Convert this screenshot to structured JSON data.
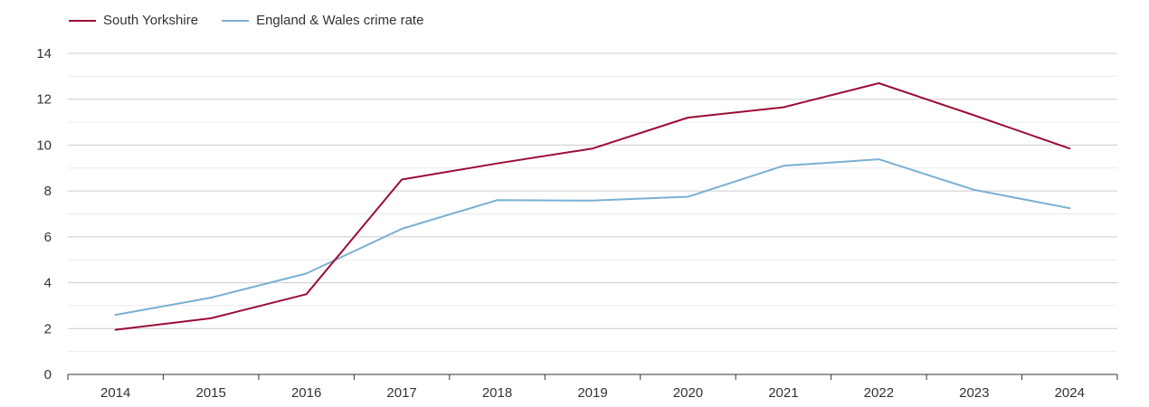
{
  "chart_data": {
    "type": "line",
    "title": "",
    "xlabel": "",
    "ylabel": "",
    "categories": [
      "2014",
      "2015",
      "2016",
      "2017",
      "2018",
      "2019",
      "2020",
      "2021",
      "2022",
      "2023",
      "2024"
    ],
    "ylim": [
      0,
      14
    ],
    "yticks": [
      0,
      2,
      4,
      6,
      8,
      10,
      12,
      14
    ],
    "grid": true,
    "legend_position": "top-left",
    "series": [
      {
        "name": "South Yorkshire",
        "color": "#9b0d33",
        "values": [
          1.95,
          2.45,
          3.5,
          8.5,
          9.2,
          9.85,
          11.2,
          11.65,
          12.7,
          11.3,
          9.85
        ]
      },
      {
        "name": "England & Wales crime rate",
        "color": "#7ab0d2",
        "values": [
          2.6,
          3.35,
          4.4,
          6.35,
          7.6,
          7.58,
          7.75,
          9.1,
          9.38,
          8.05,
          7.25
        ]
      }
    ]
  }
}
